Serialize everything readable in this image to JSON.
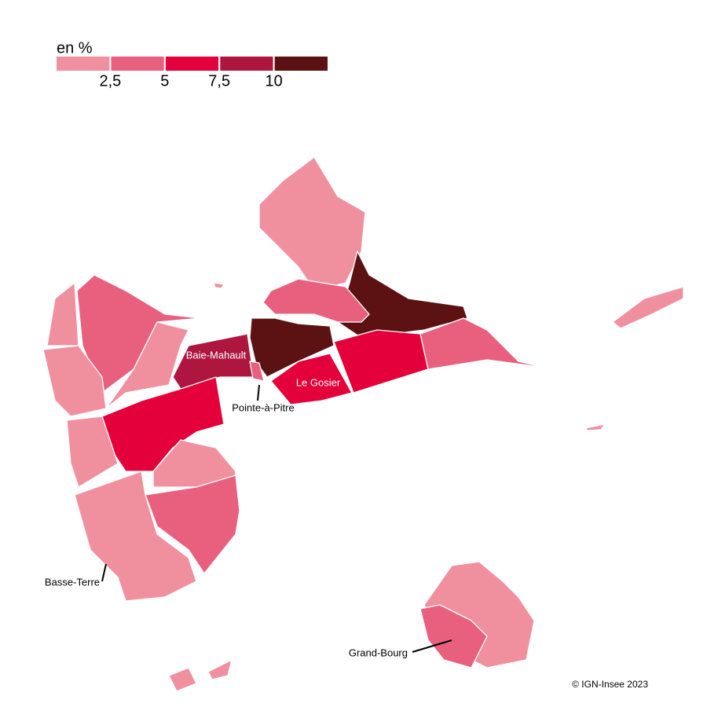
{
  "legend": {
    "title": "en %",
    "ticks": [
      {
        "value": 2.5,
        "label": "2,5"
      },
      5,
      {
        "value": 7.5,
        "label": "7,5"
      },
      10
    ],
    "colors": [
      "#f0909f",
      "#e8607e",
      "#e4003a",
      "#ae1640",
      "#5c1212"
    ]
  },
  "labels": [
    "Baie-Mahault",
    "Le Gosier",
    "Pointe-à-Pitre",
    "Basse-Terre",
    "Grand-Bourg"
  ],
  "credit": "© IGN-Insee 2023"
}
